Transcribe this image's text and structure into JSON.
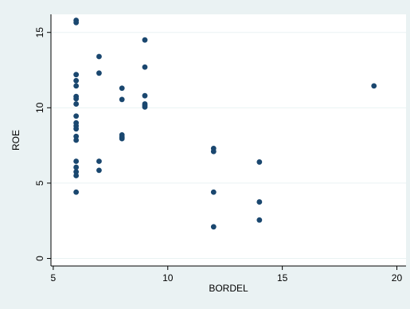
{
  "chart_data": {
    "type": "scatter",
    "title": "",
    "xlabel": "BORDEL",
    "ylabel": "ROE",
    "xlim": [
      4.9,
      20.4
    ],
    "ylim": [
      -0.5,
      16.2
    ],
    "xticks": [
      5,
      10,
      15,
      20
    ],
    "yticks": [
      0,
      5,
      10,
      15
    ],
    "grid": "horizontal",
    "legend": "none",
    "colors": {
      "outer_background": "#eaf2f3",
      "plot_background": "#ffffff",
      "marker": "#1a476f",
      "grid": "#eaf2f3"
    },
    "series": [
      {
        "points": [
          [
            6,
            15.8
          ],
          [
            6,
            15.65
          ],
          [
            6,
            12.2
          ],
          [
            6,
            11.8
          ],
          [
            6,
            11.45
          ],
          [
            6,
            10.75
          ],
          [
            6,
            10.6
          ],
          [
            6,
            10.25
          ],
          [
            6,
            9.45
          ],
          [
            6,
            9.0
          ],
          [
            6,
            8.8
          ],
          [
            6,
            8.6
          ],
          [
            6,
            8.1
          ],
          [
            6,
            7.85
          ],
          [
            6,
            6.45
          ],
          [
            6,
            6.05
          ],
          [
            6,
            5.75
          ],
          [
            6,
            5.5
          ],
          [
            6,
            4.4
          ],
          [
            7,
            13.4
          ],
          [
            7,
            12.3
          ],
          [
            7,
            6.45
          ],
          [
            7,
            5.85
          ],
          [
            8,
            11.3
          ],
          [
            8,
            10.55
          ],
          [
            8,
            8.2
          ],
          [
            8,
            8.05
          ],
          [
            8,
            7.95
          ],
          [
            9,
            14.5
          ],
          [
            9,
            12.7
          ],
          [
            9,
            10.8
          ],
          [
            9,
            10.25
          ],
          [
            9,
            10.15
          ],
          [
            9,
            10.05
          ],
          [
            12,
            7.3
          ],
          [
            12,
            7.1
          ],
          [
            12,
            4.4
          ],
          [
            12,
            2.1
          ],
          [
            14,
            6.4
          ],
          [
            14,
            3.75
          ],
          [
            14,
            2.55
          ],
          [
            19,
            11.45
          ]
        ]
      }
    ]
  }
}
